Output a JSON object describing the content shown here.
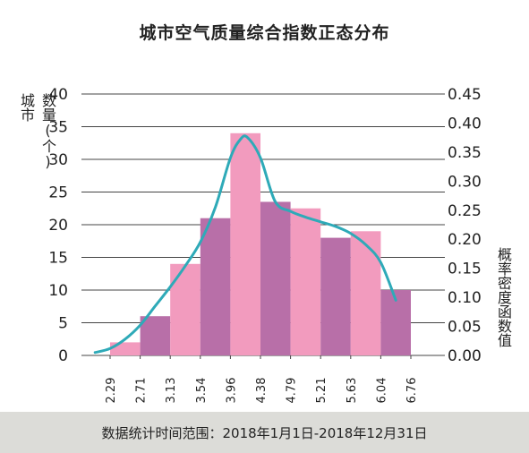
{
  "chart_data": {
    "type": "bar",
    "title": "城市空气质量综合指数正态分布",
    "ylabel_left": [
      "城市",
      "数量(个)"
    ],
    "ylabel_right": "概率密度函数值",
    "left_axis": {
      "ticks": [
        0,
        5,
        10,
        15,
        20,
        25,
        30,
        35,
        40
      ],
      "ylim": [
        0,
        40
      ]
    },
    "right_axis": {
      "ticks": [
        "0.00",
        "0.05",
        "0.10",
        "0.15",
        "0.20",
        "0.25",
        "0.30",
        "0.35",
        "0.40",
        "0.45"
      ],
      "ylim": [
        0,
        0.45
      ]
    },
    "x_ticks": [
      "2.29",
      "2.71",
      "3.13",
      "3.54",
      "3.96",
      "4.38",
      "4.79",
      "5.21",
      "5.63",
      "6.04",
      "6.76"
    ],
    "bars": [
      {
        "from": "2.29",
        "to": "2.71",
        "value": 2
      },
      {
        "from": "2.71",
        "to": "3.13",
        "value": 6
      },
      {
        "from": "3.13",
        "to": "3.54",
        "value": 14
      },
      {
        "from": "3.54",
        "to": "3.96",
        "value": 21
      },
      {
        "from": "3.96",
        "to": "4.38",
        "value": 34
      },
      {
        "from": "4.38",
        "to": "4.79",
        "value": 23.5
      },
      {
        "from": "4.79",
        "to": "5.21",
        "value": 22.5
      },
      {
        "from": "5.21",
        "to": "5.63",
        "value": 18
      },
      {
        "from": "5.63",
        "to": "6.04",
        "value": 19
      },
      {
        "from": "6.04",
        "to": "6.76",
        "value": 10
      }
    ],
    "bar_colors": [
      "#f29bbe",
      "#b86fa8"
    ],
    "density_curve": {
      "color": "#2eaab8",
      "points": [
        {
          "x": 2.08,
          "y": 0.005
        },
        {
          "x": 2.29,
          "y": 0.012
        },
        {
          "x": 2.5,
          "y": 0.028
        },
        {
          "x": 2.71,
          "y": 0.052
        },
        {
          "x": 2.92,
          "y": 0.085
        },
        {
          "x": 3.13,
          "y": 0.118
        },
        {
          "x": 3.34,
          "y": 0.155
        },
        {
          "x": 3.54,
          "y": 0.195
        },
        {
          "x": 3.75,
          "y": 0.255
        },
        {
          "x": 3.96,
          "y": 0.34
        },
        {
          "x": 4.1,
          "y": 0.372
        },
        {
          "x": 4.2,
          "y": 0.375
        },
        {
          "x": 4.38,
          "y": 0.34
        },
        {
          "x": 4.58,
          "y": 0.265
        },
        {
          "x": 4.79,
          "y": 0.248
        },
        {
          "x": 5.0,
          "y": 0.238
        },
        {
          "x": 5.21,
          "y": 0.23
        },
        {
          "x": 5.42,
          "y": 0.222
        },
        {
          "x": 5.63,
          "y": 0.21
        },
        {
          "x": 5.84,
          "y": 0.19
        },
        {
          "x": 6.04,
          "y": 0.16
        },
        {
          "x": 6.4,
          "y": 0.095
        }
      ]
    },
    "grid": true
  },
  "footer": {
    "note": "数据统计时间范围：2018年1月1日-2018年12月31日"
  }
}
